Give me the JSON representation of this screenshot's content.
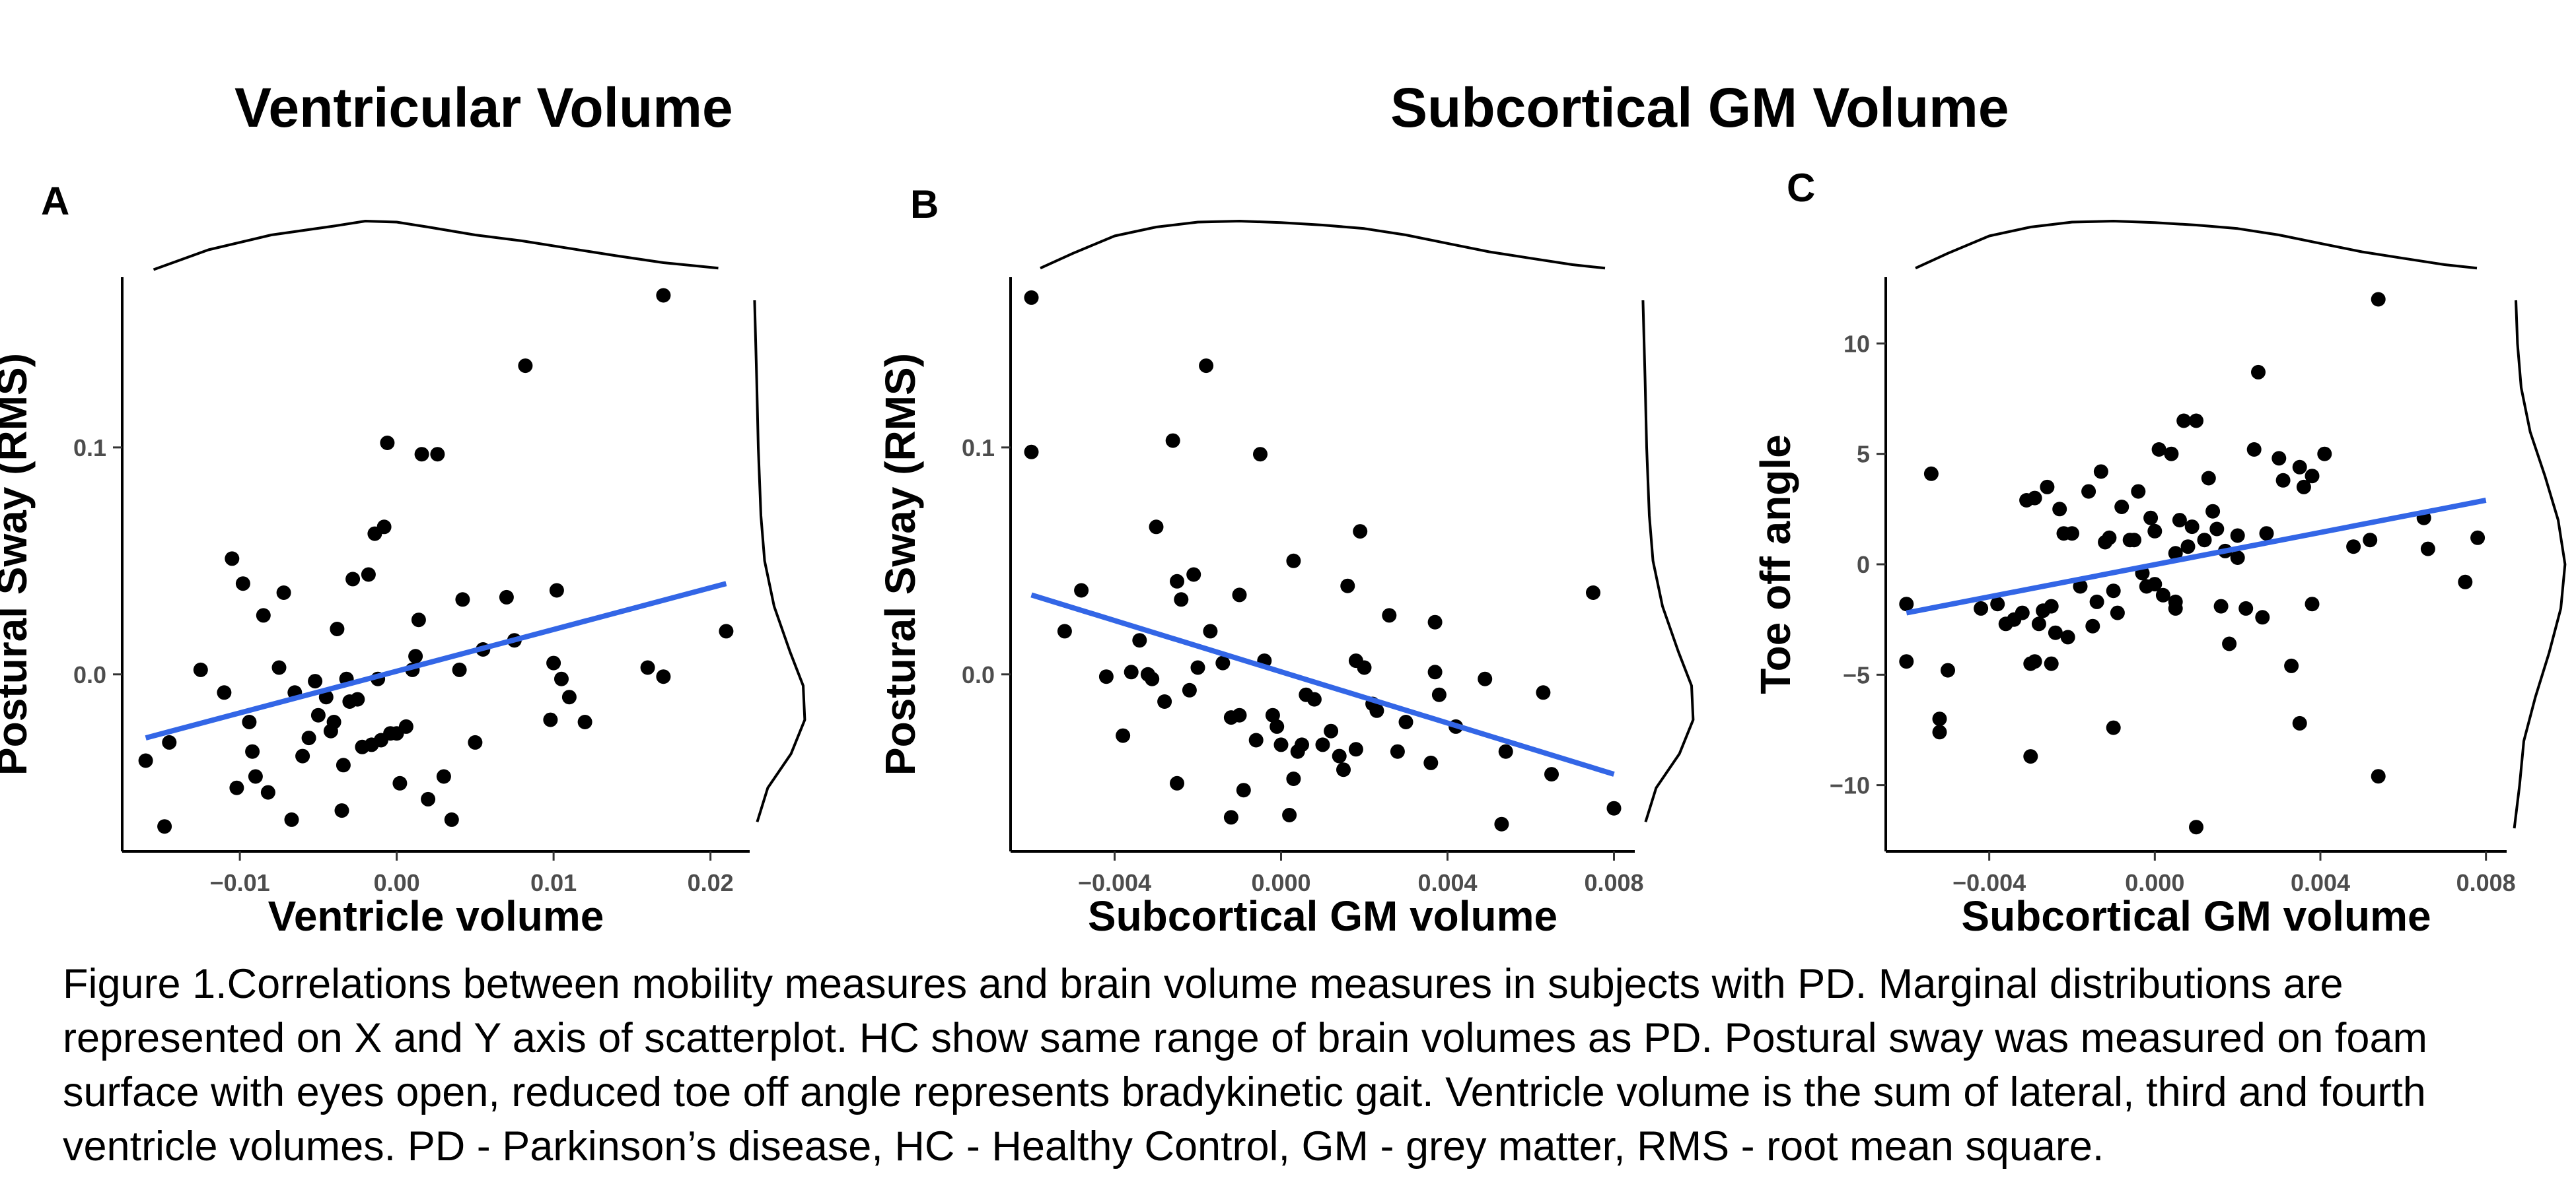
{
  "section_titles": {
    "ventricular": "Ventricular Volume",
    "subcortical": "Subcortical GM Volume"
  },
  "caption": "Figure 1.Correlations between mobility measures and brain volume measures in subjects with PD. Marginal distributions are represented on X and Y axis of scatterplot. HC show same range of brain volumes as PD. Postural sway was measured on foam surface with eyes open, reduced toe off angle represents bradykinetic gait. Ventricle volume is the sum of lateral, third and fourth ventricle volumes. PD - Parkinson’s disease, HC - Healthy Control, GM - grey matter, RMS - root mean square.",
  "chart_data": [
    {
      "type": "scatter",
      "panel": "A",
      "xlabel": "Ventricle volume",
      "ylabel": "Postural Sway (RMS)",
      "xlim": [
        -0.0175,
        0.0225
      ],
      "ylim": [
        -0.078,
        0.175
      ],
      "xticks": [
        -0.01,
        0.0,
        0.01,
        0.02
      ],
      "xtick_labels": [
        "−0.01",
        "0.00",
        "0.01",
        "0.02"
      ],
      "yticks": [
        0.0,
        0.1
      ],
      "ytick_labels": [
        "0.0",
        "0.1"
      ],
      "fit_line": [
        [
          -0.016,
          -0.028
        ],
        [
          0.021,
          0.04
        ]
      ],
      "line_color": "#3366e6",
      "marginal_x": [
        [
          -0.0155,
          0.02
        ],
        [
          -0.012,
          0.42
        ],
        [
          -0.008,
          0.72
        ],
        [
          -0.004,
          0.9
        ],
        [
          -0.002,
          1.0
        ],
        [
          0.0,
          0.98
        ],
        [
          0.002,
          0.88
        ],
        [
          0.005,
          0.72
        ],
        [
          0.008,
          0.6
        ],
        [
          0.011,
          0.45
        ],
        [
          0.014,
          0.3
        ],
        [
          0.017,
          0.16
        ],
        [
          0.0205,
          0.05
        ]
      ],
      "marginal_y": [
        [
          -0.065,
          0.08
        ],
        [
          -0.05,
          0.28
        ],
        [
          -0.035,
          0.72
        ],
        [
          -0.02,
          0.98
        ],
        [
          -0.005,
          0.95
        ],
        [
          0.01,
          0.7
        ],
        [
          0.03,
          0.4
        ],
        [
          0.05,
          0.22
        ],
        [
          0.07,
          0.15
        ],
        [
          0.1,
          0.1
        ],
        [
          0.13,
          0.07
        ],
        [
          0.17,
          0.03
        ]
      ],
      "points": [
        [
          -0.016,
          -0.038
        ],
        [
          -0.0145,
          -0.03
        ],
        [
          -0.0148,
          -0.067
        ],
        [
          -0.0125,
          0.002
        ],
        [
          -0.011,
          -0.008
        ],
        [
          -0.0105,
          0.051
        ],
        [
          -0.0102,
          -0.05
        ],
        [
          -0.0098,
          0.04
        ],
        [
          -0.0094,
          -0.021
        ],
        [
          -0.0092,
          -0.034
        ],
        [
          -0.009,
          -0.045
        ],
        [
          -0.0085,
          0.026
        ],
        [
          -0.0082,
          -0.052
        ],
        [
          -0.0075,
          0.003
        ],
        [
          -0.0072,
          0.036
        ],
        [
          -0.0067,
          -0.064
        ],
        [
          -0.0065,
          -0.008
        ],
        [
          -0.006,
          -0.036
        ],
        [
          -0.0056,
          -0.028
        ],
        [
          -0.0052,
          -0.003
        ],
        [
          -0.005,
          -0.018
        ],
        [
          -0.0045,
          -0.01
        ],
        [
          -0.0042,
          -0.025
        ],
        [
          -0.004,
          -0.021
        ],
        [
          -0.0038,
          0.02
        ],
        [
          -0.0035,
          -0.06
        ],
        [
          -0.0034,
          -0.04
        ],
        [
          -0.0032,
          -0.002
        ],
        [
          -0.003,
          -0.012
        ],
        [
          -0.0028,
          0.042
        ],
        [
          -0.0025,
          -0.011
        ],
        [
          -0.0022,
          -0.032
        ],
        [
          -0.0018,
          0.044
        ],
        [
          -0.0016,
          -0.031
        ],
        [
          -0.0014,
          0.062
        ],
        [
          -0.0012,
          -0.002
        ],
        [
          -0.001,
          -0.029
        ],
        [
          -0.0008,
          0.065
        ],
        [
          -0.0006,
          0.102
        ],
        [
          -0.0004,
          -0.026
        ],
        [
          0.0,
          -0.026
        ],
        [
          0.0002,
          -0.048
        ],
        [
          0.0006,
          -0.023
        ],
        [
          0.001,
          0.002
        ],
        [
          0.0012,
          0.008
        ],
        [
          0.0014,
          0.024
        ],
        [
          0.0016,
          0.097
        ],
        [
          0.002,
          -0.055
        ],
        [
          0.0026,
          0.097
        ],
        [
          0.003,
          -0.045
        ],
        [
          0.0035,
          -0.064
        ],
        [
          0.004,
          0.002
        ],
        [
          0.0042,
          0.033
        ],
        [
          0.005,
          -0.03
        ],
        [
          0.0055,
          0.011
        ],
        [
          0.007,
          0.034
        ],
        [
          0.0075,
          0.015
        ],
        [
          0.0082,
          0.136
        ],
        [
          0.0098,
          -0.02
        ],
        [
          0.01,
          0.005
        ],
        [
          0.0102,
          0.037
        ],
        [
          0.0105,
          -0.002
        ],
        [
          0.011,
          -0.01
        ],
        [
          0.012,
          -0.021
        ],
        [
          0.016,
          0.003
        ],
        [
          0.017,
          -0.001
        ],
        [
          0.017,
          0.167
        ],
        [
          0.021,
          0.019
        ]
      ]
    },
    {
      "type": "scatter",
      "panel": "B",
      "xlabel": "Subcortical GM volume",
      "ylabel": "Postural Sway (RMS)",
      "xlim": [
        -0.0065,
        0.0085
      ],
      "ylim": [
        -0.078,
        0.175
      ],
      "xticks": [
        -0.004,
        0.0,
        0.004,
        0.008
      ],
      "xtick_labels": [
        "−0.004",
        "0.000",
        "0.004",
        "0.008"
      ],
      "yticks": [
        0.0,
        0.1
      ],
      "ytick_labels": [
        "0.0",
        "0.1"
      ],
      "fit_line": [
        [
          -0.006,
          0.035
        ],
        [
          0.008,
          -0.044
        ]
      ],
      "line_color": "#3366e6",
      "marginal_x": [
        [
          -0.006,
          0.05
        ],
        [
          -0.005,
          0.35
        ],
        [
          -0.004,
          0.7
        ],
        [
          -0.003,
          0.88
        ],
        [
          -0.002,
          0.98
        ],
        [
          -0.001,
          1.0
        ],
        [
          0.0,
          0.97
        ],
        [
          0.001,
          0.92
        ],
        [
          0.002,
          0.85
        ],
        [
          0.003,
          0.72
        ],
        [
          0.004,
          0.55
        ],
        [
          0.005,
          0.38
        ],
        [
          0.006,
          0.25
        ],
        [
          0.007,
          0.12
        ],
        [
          0.008,
          0.05
        ]
      ],
      "marginal_y": [
        [
          -0.065,
          0.08
        ],
        [
          -0.05,
          0.28
        ],
        [
          -0.035,
          0.72
        ],
        [
          -0.02,
          0.98
        ],
        [
          -0.005,
          0.95
        ],
        [
          0.01,
          0.7
        ],
        [
          0.03,
          0.4
        ],
        [
          0.05,
          0.22
        ],
        [
          0.07,
          0.15
        ],
        [
          0.1,
          0.1
        ],
        [
          0.13,
          0.07
        ],
        [
          0.17,
          0.03
        ]
      ],
      "points": [
        [
          -0.006,
          0.166
        ],
        [
          -0.006,
          0.098
        ],
        [
          -0.0052,
          0.019
        ],
        [
          -0.0048,
          0.037
        ],
        [
          -0.0042,
          -0.001
        ],
        [
          -0.0038,
          -0.027
        ],
        [
          -0.0036,
          0.001
        ],
        [
          -0.0034,
          0.015
        ],
        [
          -0.0032,
          -0.0
        ],
        [
          -0.0031,
          -0.002
        ],
        [
          -0.003,
          0.065
        ],
        [
          -0.0028,
          -0.012
        ],
        [
          -0.0026,
          0.103
        ],
        [
          -0.0025,
          -0.048
        ],
        [
          -0.0025,
          0.041
        ],
        [
          -0.0024,
          0.033
        ],
        [
          -0.0022,
          -0.007
        ],
        [
          -0.0021,
          0.044
        ],
        [
          -0.002,
          0.003
        ],
        [
          -0.0018,
          0.136
        ],
        [
          -0.0017,
          0.019
        ],
        [
          -0.0014,
          0.005
        ],
        [
          -0.0012,
          -0.063
        ],
        [
          -0.0012,
          -0.019
        ],
        [
          -0.001,
          0.035
        ],
        [
          -0.001,
          -0.018
        ],
        [
          -0.0009,
          -0.051
        ],
        [
          -0.0006,
          -0.029
        ],
        [
          -0.0005,
          0.097
        ],
        [
          -0.0004,
          0.006
        ],
        [
          -0.0002,
          -0.018
        ],
        [
          -0.0001,
          -0.023
        ],
        [
          0.0,
          -0.031
        ],
        [
          0.0002,
          -0.062
        ],
        [
          0.0003,
          -0.046
        ],
        [
          0.0003,
          0.05
        ],
        [
          0.0004,
          -0.034
        ],
        [
          0.0005,
          -0.031
        ],
        [
          0.0006,
          -0.009
        ],
        [
          0.0008,
          -0.011
        ],
        [
          0.001,
          -0.031
        ],
        [
          0.0012,
          -0.025
        ],
        [
          0.0014,
          -0.036
        ],
        [
          0.0015,
          -0.042
        ],
        [
          0.0016,
          0.039
        ],
        [
          0.0018,
          0.006
        ],
        [
          0.0018,
          -0.033
        ],
        [
          0.0019,
          0.063
        ],
        [
          0.002,
          0.003
        ],
        [
          0.0022,
          -0.013
        ],
        [
          0.0023,
          -0.016
        ],
        [
          0.0026,
          0.026
        ],
        [
          0.0028,
          -0.034
        ],
        [
          0.003,
          -0.021
        ],
        [
          0.0036,
          -0.039
        ],
        [
          0.0037,
          0.001
        ],
        [
          0.0037,
          0.023
        ],
        [
          0.0038,
          -0.009
        ],
        [
          0.0042,
          -0.023
        ],
        [
          0.0049,
          -0.002
        ],
        [
          0.0053,
          -0.066
        ],
        [
          0.0054,
          -0.034
        ],
        [
          0.0063,
          -0.008
        ],
        [
          0.0065,
          -0.044
        ],
        [
          0.0075,
          0.036
        ],
        [
          0.008,
          -0.059
        ]
      ]
    },
    {
      "type": "scatter",
      "panel": "C",
      "xlabel": "Subcortical GM volume",
      "ylabel": "Toe off angle",
      "xlim": [
        -0.0065,
        0.0085
      ],
      "ylim": [
        -13.0,
        13.0
      ],
      "xticks": [
        -0.004,
        0.0,
        0.004,
        0.008
      ],
      "xtick_labels": [
        "−0.004",
        "0.000",
        "0.004",
        "0.008"
      ],
      "yticks": [
        -10,
        -5,
        0,
        5,
        10
      ],
      "ytick_labels": [
        "−10",
        "−5",
        "0",
        "5",
        "10"
      ],
      "fit_line": [
        [
          -0.006,
          -2.2
        ],
        [
          0.008,
          2.9
        ]
      ],
      "line_color": "#3366e6",
      "marginal_x": [
        [
          -0.006,
          0.05
        ],
        [
          -0.005,
          0.35
        ],
        [
          -0.004,
          0.7
        ],
        [
          -0.003,
          0.88
        ],
        [
          -0.002,
          0.98
        ],
        [
          -0.001,
          1.0
        ],
        [
          0.0,
          0.97
        ],
        [
          0.001,
          0.92
        ],
        [
          0.002,
          0.85
        ],
        [
          0.003,
          0.72
        ],
        [
          0.004,
          0.55
        ],
        [
          0.005,
          0.38
        ],
        [
          0.006,
          0.25
        ],
        [
          0.007,
          0.12
        ],
        [
          0.008,
          0.05
        ]
      ],
      "marginal_y": [
        [
          -12,
          0.02
        ],
        [
          -10,
          0.12
        ],
        [
          -8,
          0.2
        ],
        [
          -6,
          0.42
        ],
        [
          -4,
          0.68
        ],
        [
          -2,
          0.9
        ],
        [
          0,
          0.98
        ],
        [
          2,
          0.85
        ],
        [
          4,
          0.6
        ],
        [
          6,
          0.32
        ],
        [
          8,
          0.15
        ],
        [
          10,
          0.08
        ],
        [
          12,
          0.05
        ]
      ],
      "points": [
        [
          -0.006,
          -1.8
        ],
        [
          -0.006,
          -4.4
        ],
        [
          -0.0054,
          4.1
        ],
        [
          -0.0052,
          -7.0
        ],
        [
          -0.0052,
          -7.6
        ],
        [
          -0.005,
          -4.8
        ],
        [
          -0.0042,
          -2.0
        ],
        [
          -0.0038,
          -1.8
        ],
        [
          -0.0036,
          -2.7
        ],
        [
          -0.0034,
          -2.5
        ],
        [
          -0.0032,
          -2.2
        ],
        [
          -0.0031,
          2.9
        ],
        [
          -0.003,
          -4.5
        ],
        [
          -0.003,
          -8.7
        ],
        [
          -0.0029,
          -4.4
        ],
        [
          -0.0029,
          3.0
        ],
        [
          -0.0028,
          -2.7
        ],
        [
          -0.0027,
          -2.1
        ],
        [
          -0.0026,
          3.5
        ],
        [
          -0.0025,
          -4.5
        ],
        [
          -0.0025,
          -1.9
        ],
        [
          -0.0024,
          -3.1
        ],
        [
          -0.0023,
          2.5
        ],
        [
          -0.0022,
          1.4
        ],
        [
          -0.0021,
          -3.3
        ],
        [
          -0.002,
          1.4
        ],
        [
          -0.0018,
          -1.0
        ],
        [
          -0.0016,
          3.3
        ],
        [
          -0.0015,
          -2.8
        ],
        [
          -0.0014,
          -1.7
        ],
        [
          -0.0013,
          4.2
        ],
        [
          -0.0012,
          1.0
        ],
        [
          -0.0011,
          1.2
        ],
        [
          -0.001,
          -1.2
        ],
        [
          -0.001,
          -7.4
        ],
        [
          -0.0009,
          -2.2
        ],
        [
          -0.0008,
          2.6
        ],
        [
          -0.0006,
          1.1
        ],
        [
          -0.0005,
          1.1
        ],
        [
          -0.0004,
          3.3
        ],
        [
          -0.0003,
          -0.4
        ],
        [
          -0.0002,
          -1.0
        ],
        [
          -0.0001,
          2.1
        ],
        [
          0.0,
          -0.9
        ],
        [
          0.0,
          1.5
        ],
        [
          0.0001,
          5.2
        ],
        [
          0.0002,
          -1.4
        ],
        [
          0.0004,
          5.0
        ],
        [
          0.0005,
          -2.0
        ],
        [
          0.0005,
          -1.7
        ],
        [
          0.0005,
          0.5
        ],
        [
          0.0006,
          2.0
        ],
        [
          0.0007,
          6.5
        ],
        [
          0.0008,
          0.8
        ],
        [
          0.0009,
          1.7
        ],
        [
          0.001,
          6.5
        ],
        [
          0.0012,
          1.1
        ],
        [
          0.0013,
          3.9
        ],
        [
          0.0014,
          2.4
        ],
        [
          0.0015,
          1.6
        ],
        [
          0.0016,
          -1.9
        ],
        [
          0.0017,
          0.6
        ],
        [
          0.0018,
          -3.6
        ],
        [
          0.002,
          0.3
        ],
        [
          0.002,
          1.3
        ],
        [
          0.0022,
          -2.0
        ],
        [
          0.0024,
          5.2
        ],
        [
          0.0025,
          8.7
        ],
        [
          0.0026,
          -2.4
        ],
        [
          0.0027,
          1.4
        ],
        [
          0.003,
          4.8
        ],
        [
          0.0031,
          3.8
        ],
        [
          0.0033,
          -4.6
        ],
        [
          0.0035,
          4.4
        ],
        [
          0.0035,
          -7.2
        ],
        [
          0.0036,
          3.5
        ],
        [
          0.0038,
          -1.8
        ],
        [
          0.0038,
          4.0
        ],
        [
          0.0041,
          5.0
        ],
        [
          0.0048,
          0.8
        ],
        [
          0.0052,
          1.1
        ],
        [
          0.0054,
          -9.6
        ],
        [
          0.0054,
          12.0
        ],
        [
          0.0065,
          2.1
        ],
        [
          0.0066,
          0.7
        ],
        [
          0.0075,
          -0.8
        ],
        [
          0.0078,
          1.2
        ],
        [
          0.001,
          -11.9
        ]
      ]
    }
  ]
}
